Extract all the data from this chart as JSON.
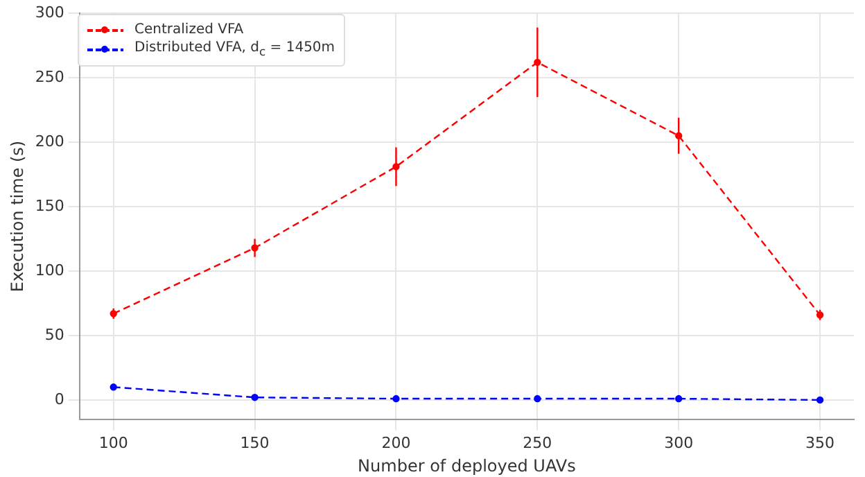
{
  "chart_data": {
    "type": "line",
    "xlabel": "Number of deployed UAVs",
    "ylabel": "Execution time (s)",
    "x": [
      100,
      150,
      200,
      250,
      300,
      350
    ],
    "series": [
      {
        "name": "Centralized VFA",
        "color": "#ff0000",
        "values": [
          67,
          118,
          181,
          262,
          205,
          66
        ],
        "errors": [
          4,
          7,
          15,
          27,
          14,
          4
        ]
      },
      {
        "name": "Distributed VFA, d$_{c}$ = 1450m",
        "color": "#0000ff",
        "values": [
          10,
          2,
          1,
          1,
          1,
          0
        ]
      }
    ],
    "xlim": [
      88,
      362
    ],
    "ylim": [
      -15,
      300
    ],
    "xticks": [
      100,
      150,
      200,
      250,
      300,
      350
    ],
    "yticks": [
      0,
      50,
      100,
      150,
      200,
      250,
      300
    ],
    "grid": true,
    "legend": "top left",
    "marker": "circle",
    "line_style": "dashed"
  }
}
